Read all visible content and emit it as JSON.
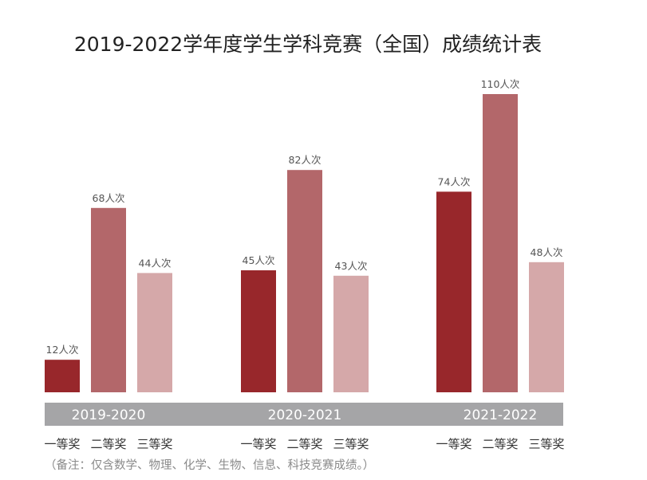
{
  "chart_data": {
    "type": "bar",
    "title": "2019-2022学年度学生学科竞赛（全国）成绩统计表",
    "groups": [
      "2019-2020",
      "2020-2021",
      "2021-2022"
    ],
    "categories": [
      "一等奖",
      "二等奖",
      "三等奖"
    ],
    "series": [
      {
        "group": "2019-2020",
        "values": [
          12,
          68,
          44
        ],
        "labels": [
          "12人次",
          "68人次",
          "44人次"
        ]
      },
      {
        "group": "2020-2021",
        "values": [
          45,
          82,
          43
        ],
        "labels": [
          "45人次",
          "82人次",
          "43人次"
        ]
      },
      {
        "group": "2021-2022",
        "values": [
          74,
          110,
          48
        ],
        "labels": [
          "74人次",
          "110人次",
          "48人次"
        ]
      }
    ],
    "colors": [
      "#98272b",
      "#b3676a",
      "#d5a8a9"
    ],
    "band_color": "#a5a5a7",
    "note": "（备注：仅含数学、物理、化学、生物、信息、科技竞赛成绩。）"
  }
}
